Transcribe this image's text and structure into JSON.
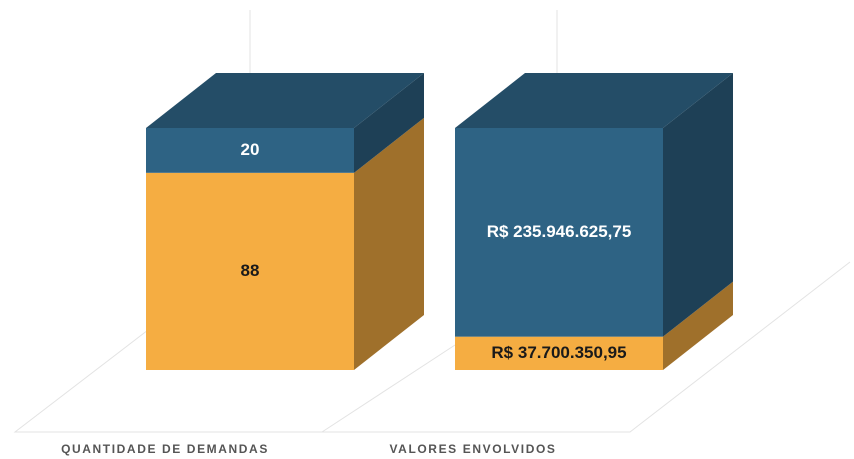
{
  "chart_data": {
    "type": "bar",
    "stacked_percent": true,
    "categories": [
      "QUANTIDADE DE DEMANDAS",
      "VALORES ENVOLVIDOS"
    ],
    "series": [
      {
        "color": "#f5ad42",
        "values": [
          88,
          37700350.95
        ],
        "value_labels": [
          "88",
          "R$ 37.700.350,95"
        ]
      },
      {
        "color": "#2e6384",
        "values": [
          20,
          235946625.75
        ],
        "value_labels": [
          "20",
          "R$ 235.946.625,75"
        ]
      }
    ]
  }
}
